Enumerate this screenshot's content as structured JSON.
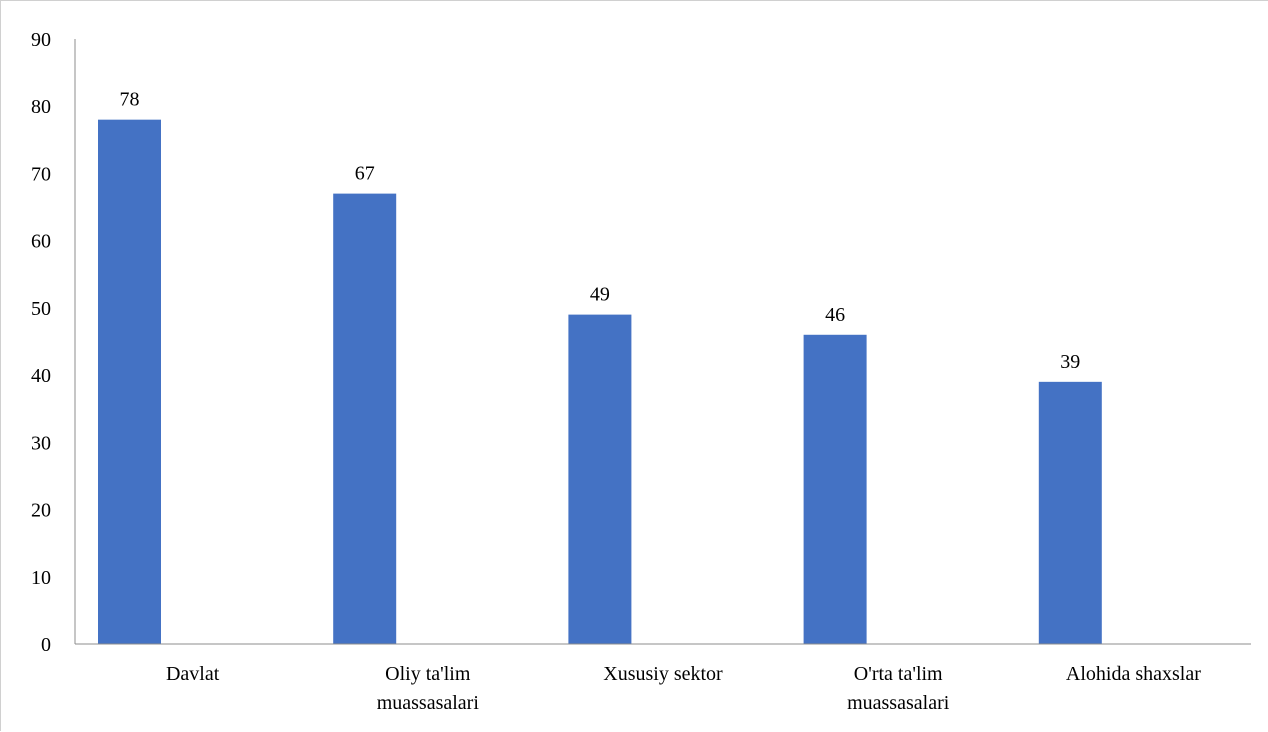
{
  "chart_data": {
    "type": "bar",
    "categories": [
      [
        "Davlat"
      ],
      [
        "Oliy ta'lim",
        "muassasalari"
      ],
      [
        "Xususiy sektor"
      ],
      [
        "O'rta ta'lim",
        "muassasalari"
      ],
      [
        "Alohida shaxslar"
      ]
    ],
    "values": [
      78,
      67,
      49,
      46,
      39
    ],
    "ylim": [
      0,
      90
    ],
    "yticks": [
      0,
      10,
      20,
      30,
      40,
      50,
      60,
      70,
      80,
      90
    ],
    "data_labels": true,
    "grid": false,
    "legend": "none",
    "bar_color": "#4472C4",
    "axis_color": "#8c8c8c"
  }
}
